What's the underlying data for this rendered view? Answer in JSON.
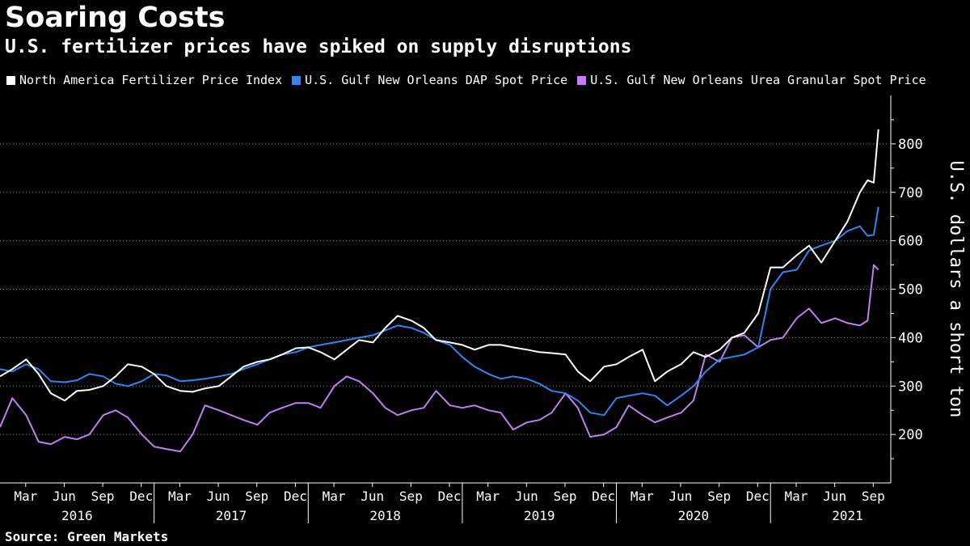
{
  "header": {
    "title": "Soaring Costs",
    "subtitle": "U.S. fertilizer prices have spiked on supply disruptions"
  },
  "footer": {
    "source": "Source: Green Markets"
  },
  "chart_data": {
    "type": "line",
    "title": "Soaring Costs",
    "subtitle": "U.S. fertilizer prices have spiked on supply disruptions",
    "xlabel": "",
    "ylabel": "U.S. dollars a short ton",
    "ylim": [
      100,
      900
    ],
    "yticks": [
      200,
      300,
      400,
      500,
      600,
      700,
      800
    ],
    "grid": true,
    "legend_position": "top",
    "x_start": 2016.0,
    "x_end": 2021.77,
    "month_ticks": [
      "Mar",
      "Jun",
      "Sep",
      "Dec",
      "Mar",
      "Jun",
      "Sep",
      "Dec",
      "Mar",
      "Jun",
      "Sep",
      "Dec",
      "Mar",
      "Jun",
      "Sep",
      "Dec",
      "Mar",
      "Jun",
      "Sep",
      "Dec",
      "Mar",
      "Jun",
      "Sep"
    ],
    "year_labels": [
      "2016",
      "2017",
      "2018",
      "2019",
      "2020",
      "2021"
    ],
    "series": [
      {
        "name": "North America Fertilizer Price Index",
        "color": "#ffffff",
        "x": [
          2016.0,
          2016.08,
          2016.17,
          2016.25,
          2016.33,
          2016.42,
          2016.5,
          2016.58,
          2016.67,
          2016.75,
          2016.83,
          2016.92,
          2017.0,
          2017.08,
          2017.17,
          2017.25,
          2017.33,
          2017.42,
          2017.5,
          2017.58,
          2017.67,
          2017.75,
          2017.83,
          2017.92,
          2018.0,
          2018.08,
          2018.17,
          2018.25,
          2018.33,
          2018.42,
          2018.5,
          2018.58,
          2018.67,
          2018.75,
          2018.83,
          2018.92,
          2019.0,
          2019.08,
          2019.17,
          2019.25,
          2019.33,
          2019.42,
          2019.5,
          2019.58,
          2019.67,
          2019.75,
          2019.83,
          2019.92,
          2020.0,
          2020.08,
          2020.17,
          2020.25,
          2020.33,
          2020.42,
          2020.5,
          2020.58,
          2020.67,
          2020.75,
          2020.83,
          2020.92,
          2021.0,
          2021.08,
          2021.17,
          2021.25,
          2021.33,
          2021.42,
          2021.5,
          2021.58,
          2021.63,
          2021.67,
          2021.7
        ],
        "values": [
          320,
          335,
          355,
          325,
          285,
          270,
          290,
          292,
          300,
          320,
          345,
          340,
          325,
          300,
          290,
          288,
          295,
          300,
          320,
          340,
          350,
          355,
          365,
          378,
          380,
          370,
          355,
          375,
          395,
          390,
          420,
          445,
          435,
          420,
          395,
          390,
          385,
          375,
          385,
          385,
          380,
          375,
          370,
          368,
          365,
          330,
          310,
          340,
          345,
          360,
          375,
          310,
          330,
          345,
          370,
          360,
          375,
          400,
          410,
          450,
          545,
          545,
          570,
          590,
          555,
          600,
          640,
          700,
          725,
          720,
          830
        ]
      },
      {
        "name": "U.S. Gulf New Orleans DAP Spot Price",
        "color": "#2e86f0",
        "x": [
          2016.0,
          2016.08,
          2016.17,
          2016.25,
          2016.33,
          2016.42,
          2016.5,
          2016.58,
          2016.67,
          2016.75,
          2016.83,
          2016.92,
          2017.0,
          2017.08,
          2017.17,
          2017.25,
          2017.33,
          2017.42,
          2017.5,
          2017.58,
          2017.67,
          2017.75,
          2017.83,
          2017.92,
          2018.0,
          2018.08,
          2018.17,
          2018.25,
          2018.33,
          2018.42,
          2018.5,
          2018.58,
          2018.67,
          2018.75,
          2018.83,
          2018.92,
          2019.0,
          2019.08,
          2019.17,
          2019.25,
          2019.33,
          2019.42,
          2019.5,
          2019.58,
          2019.67,
          2019.75,
          2019.83,
          2019.92,
          2020.0,
          2020.08,
          2020.17,
          2020.25,
          2020.33,
          2020.42,
          2020.5,
          2020.58,
          2020.67,
          2020.75,
          2020.83,
          2020.92,
          2021.0,
          2021.08,
          2021.17,
          2021.25,
          2021.33,
          2021.42,
          2021.5,
          2021.58,
          2021.63,
          2021.67,
          2021.7
        ],
        "values": [
          335,
          330,
          345,
          335,
          310,
          308,
          312,
          325,
          320,
          305,
          300,
          310,
          325,
          322,
          310,
          312,
          315,
          320,
          325,
          335,
          345,
          355,
          365,
          370,
          380,
          385,
          390,
          395,
          400,
          405,
          415,
          425,
          420,
          410,
          395,
          385,
          360,
          340,
          325,
          315,
          320,
          315,
          305,
          290,
          285,
          270,
          245,
          240,
          275,
          280,
          285,
          280,
          260,
          280,
          300,
          330,
          355,
          360,
          365,
          380,
          500,
          535,
          540,
          580,
          590,
          600,
          620,
          630,
          610,
          612,
          670
        ]
      },
      {
        "name": "U.S. Gulf New Orleans Urea Granular Spot Price",
        "color": "#c17ef5",
        "x": [
          2016.0,
          2016.08,
          2016.17,
          2016.25,
          2016.33,
          2016.42,
          2016.5,
          2016.58,
          2016.67,
          2016.75,
          2016.83,
          2016.92,
          2017.0,
          2017.08,
          2017.17,
          2017.25,
          2017.33,
          2017.42,
          2017.5,
          2017.58,
          2017.67,
          2017.75,
          2017.83,
          2017.92,
          2018.0,
          2018.08,
          2018.17,
          2018.25,
          2018.33,
          2018.42,
          2018.5,
          2018.58,
          2018.67,
          2018.75,
          2018.83,
          2018.92,
          2019.0,
          2019.08,
          2019.17,
          2019.25,
          2019.33,
          2019.42,
          2019.5,
          2019.58,
          2019.67,
          2019.75,
          2019.83,
          2019.92,
          2020.0,
          2020.08,
          2020.17,
          2020.25,
          2020.33,
          2020.42,
          2020.5,
          2020.58,
          2020.67,
          2020.75,
          2020.83,
          2020.92,
          2021.0,
          2021.08,
          2021.17,
          2021.25,
          2021.33,
          2021.42,
          2021.5,
          2021.58,
          2021.63,
          2021.67,
          2021.7
        ],
        "values": [
          215,
          275,
          240,
          185,
          180,
          195,
          190,
          200,
          240,
          250,
          235,
          200,
          175,
          170,
          165,
          200,
          260,
          250,
          240,
          230,
          220,
          245,
          255,
          265,
          265,
          255,
          300,
          320,
          310,
          285,
          255,
          240,
          250,
          255,
          290,
          260,
          255,
          260,
          250,
          245,
          210,
          225,
          230,
          245,
          285,
          255,
          195,
          200,
          215,
          260,
          240,
          225,
          235,
          245,
          270,
          365,
          350,
          400,
          405,
          380,
          395,
          400,
          440,
          460,
          430,
          440,
          430,
          425,
          435,
          550,
          540
        ]
      }
    ]
  }
}
